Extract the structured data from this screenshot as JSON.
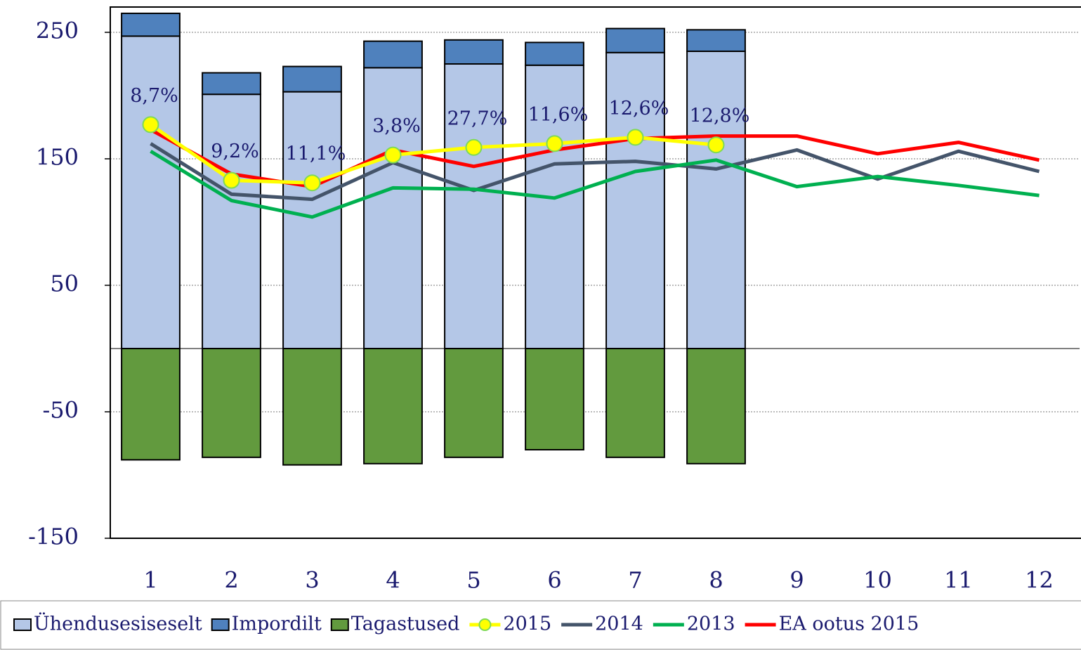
{
  "chart_data": {
    "type": "bar",
    "categories": [
      "1",
      "2",
      "3",
      "4",
      "5",
      "6",
      "7",
      "8",
      "9",
      "10",
      "11",
      "12"
    ],
    "ylim": [
      -150,
      270
    ],
    "yticks": [
      250,
      150,
      50,
      -50,
      -150
    ],
    "grid": true,
    "legend": "bottom",
    "series": [
      {
        "name": "Ühendusesiseselt",
        "type": "bar",
        "color": "#b4c7e7",
        "values": [
          247,
          201,
          203,
          222,
          225,
          224,
          234,
          235,
          null,
          null,
          null,
          null
        ]
      },
      {
        "name": "Impordilt",
        "type": "bar",
        "color": "#4f81bd",
        "values": [
          18,
          17,
          20,
          21,
          19,
          18,
          19,
          17,
          null,
          null,
          null,
          null
        ]
      },
      {
        "name": "Tagastused",
        "type": "bar",
        "color": "#629a3e",
        "values": [
          -88,
          -86,
          -92,
          -91,
          -86,
          -80,
          -86,
          -91,
          null,
          null,
          null,
          null
        ]
      },
      {
        "name": "2015",
        "type": "line",
        "color": "#ffff00",
        "marker": true,
        "values": [
          177,
          133,
          131,
          153,
          159,
          162,
          167,
          161,
          null,
          null,
          null,
          null
        ],
        "point_labels": [
          "8,7%",
          "9,2%",
          "11,1%",
          "3,8%",
          "27,7%",
          "11,6%",
          "12,6%",
          "12,8%"
        ]
      },
      {
        "name": "2014",
        "type": "line",
        "color": "#44546a",
        "values": [
          162,
          122,
          118,
          147,
          125,
          146,
          148,
          142,
          157,
          134,
          156,
          140
        ]
      },
      {
        "name": "2013",
        "type": "line",
        "color": "#00b050",
        "values": [
          156,
          117,
          104,
          127,
          126,
          119,
          140,
          149,
          128,
          136,
          129,
          121
        ]
      },
      {
        "name": "EA ootus 2015",
        "type": "line",
        "color": "#ff0000",
        "values": [
          173,
          138,
          128,
          157,
          144,
          157,
          166,
          168,
          168,
          154,
          163,
          149
        ]
      }
    ]
  }
}
